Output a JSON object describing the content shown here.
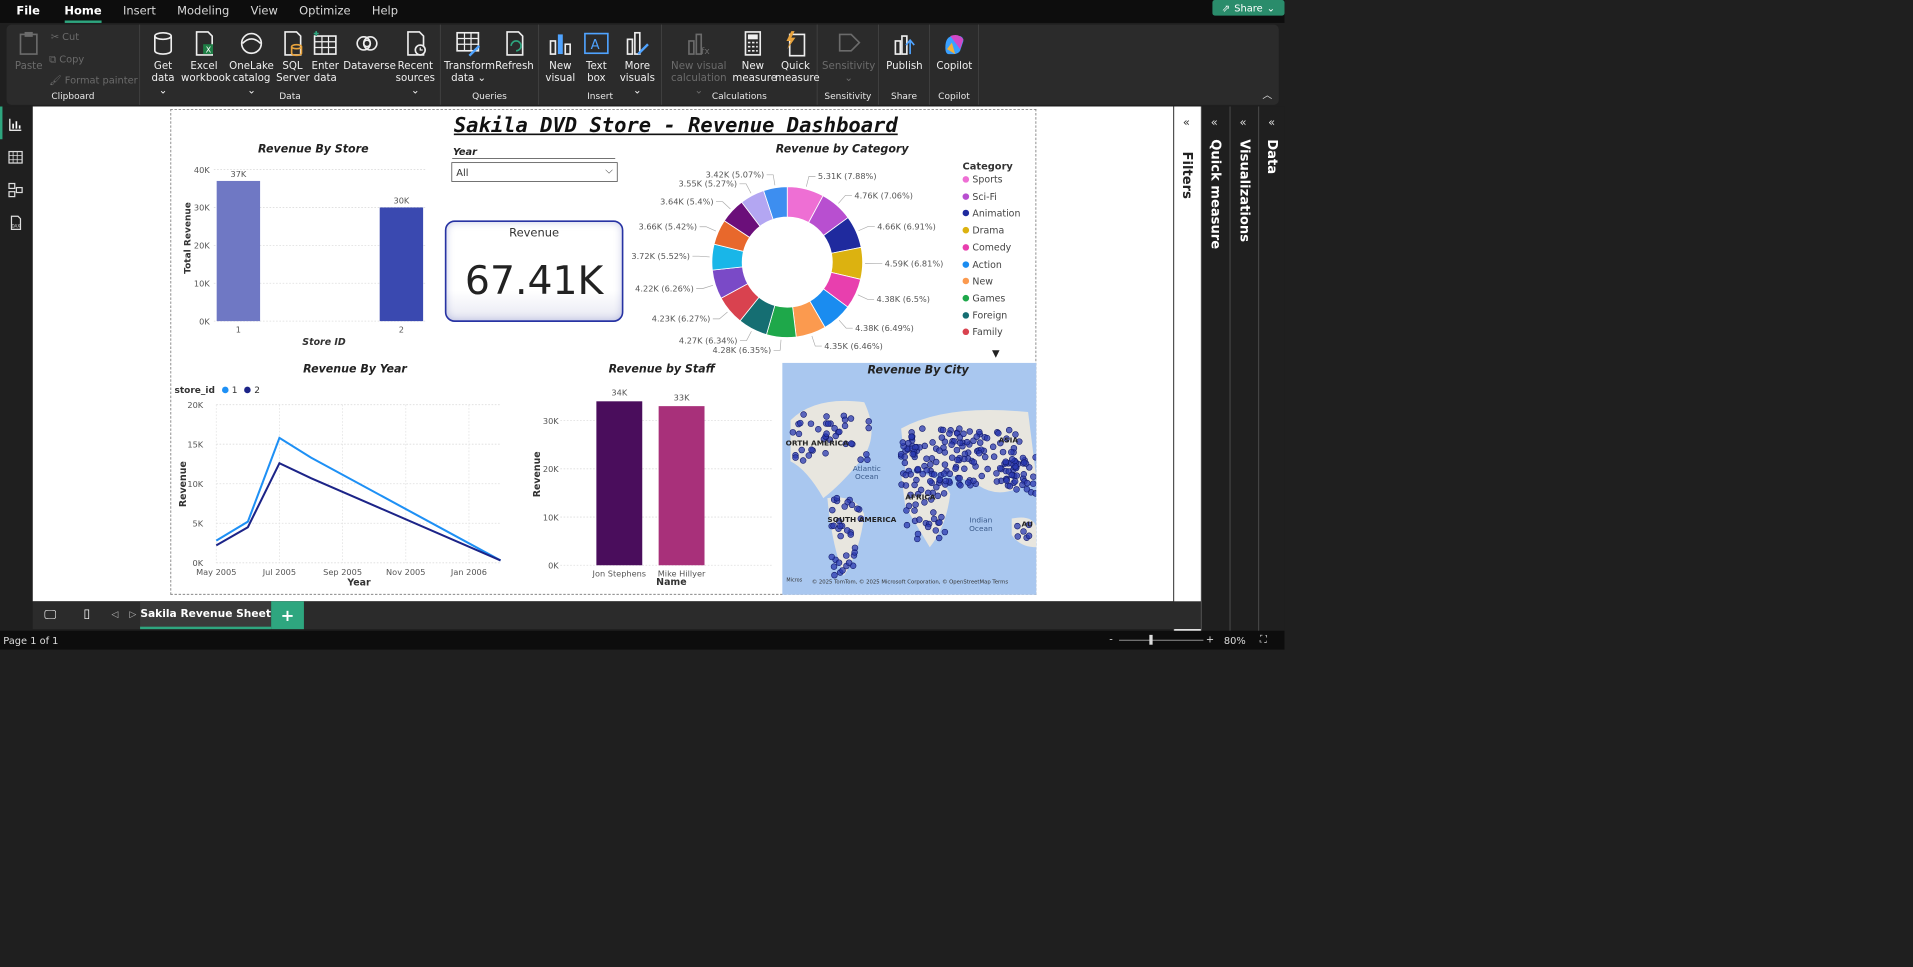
{
  "menu": {
    "file": "File",
    "tabs": [
      "Home",
      "Insert",
      "Modeling",
      "View",
      "Optimize",
      "Help"
    ],
    "share": "Share"
  },
  "ribbon": {
    "clipboard": {
      "paste": "Paste",
      "cut": "Cut",
      "copy": "Copy",
      "format_painter": "Format painter",
      "label": "Clipboard"
    },
    "data": {
      "buttons": [
        {
          "l1": "Get",
          "l2": "data ⌄"
        },
        {
          "l1": "Excel",
          "l2": "workbook"
        },
        {
          "l1": "OneLake",
          "l2": "catalog ⌄"
        },
        {
          "l1": "SQL",
          "l2": "Server"
        },
        {
          "l1": "Enter",
          "l2": "data"
        },
        {
          "l1": "Dataverse",
          "l2": ""
        },
        {
          "l1": "Recent",
          "l2": "sources ⌄"
        }
      ],
      "label": "Data"
    },
    "queries": {
      "transform_l1": "Transform",
      "transform_l2": "data ⌄",
      "refresh": "Refresh",
      "label": "Queries"
    },
    "insert": {
      "new_visual_l1": "New",
      "new_visual_l2": "visual",
      "text_box_l1": "Text",
      "text_box_l2": "box",
      "more_visuals_l1": "More",
      "more_visuals_l2": "visuals ⌄",
      "label": "Insert"
    },
    "calculations": {
      "new_visual_calc_l1": "New visual",
      "new_visual_calc_l2": "calculation ⌄",
      "new_measure_l1": "New",
      "new_measure_l2": "measure",
      "quick_measure_l1": "Quick",
      "quick_measure_l2": "measure",
      "label": "Calculations"
    },
    "sensitivity": {
      "btn": "Sensitivity",
      "btn2": "⌄",
      "label": "Sensitivity"
    },
    "share": {
      "btn": "Publish",
      "label": "Share"
    },
    "copilot": {
      "btn": "Copilot",
      "label": "Copilot"
    }
  },
  "report": {
    "title": "Sakila DVD Store - Revenue Dashboard",
    "slicer": {
      "label": "Year",
      "value": "All"
    },
    "card": {
      "label": "Revenue",
      "value": "67.41K"
    },
    "store_chart": {
      "title": "Revenue By Store",
      "xlabel": "Store ID",
      "ylabel": "Total Revenue"
    },
    "category_chart": {
      "title": "Revenue by Category",
      "legend_title": "Category"
    },
    "year_chart": {
      "title": "Revenue By Year",
      "legend_title": "store_id",
      "xlabel": "Year",
      "ylabel": "Revenue"
    },
    "staff_chart": {
      "title": "Revenue by Staff",
      "xlabel": "Name",
      "ylabel": "Revenue"
    },
    "map": {
      "title": "Revenue By City",
      "labels": {
        "north_america": "ORTH AMERICA",
        "asia": "ASIA",
        "africa": "AFRICA",
        "south_america": "SOUTH AMERICA",
        "atlantic_1": "Atlantic",
        "atlantic_2": "Ocean",
        "indian_1": "Indian",
        "indian_2": "Ocean",
        "au": "AU"
      },
      "attribution": "© 2025 TomTom, © 2025 Microsoft Corporation, © OpenStreetMap  Terms",
      "brand": "Micros"
    }
  },
  "chart_data": [
    {
      "type": "bar",
      "title": "Revenue By Store",
      "categories": [
        "1",
        "2"
      ],
      "values": [
        37000,
        30000
      ],
      "data_labels": [
        "37K",
        "30K"
      ],
      "xlabel": "Store ID",
      "ylabel": "Total Revenue",
      "ylim": [
        0,
        40000
      ],
      "yticks": [
        "0K",
        "10K",
        "20K",
        "30K",
        "40K"
      ],
      "colors": [
        "#6f78c4",
        "#3a49b0"
      ]
    },
    {
      "type": "pie",
      "title": "Revenue by Category",
      "legend": [
        "Sports",
        "Sci-Fi",
        "Animation",
        "Drama",
        "Comedy",
        "Action",
        "New",
        "Games",
        "Foreign",
        "Family"
      ],
      "slices": [
        {
          "label": "5.31K (7.88%)",
          "value": 5.31,
          "color": "#ee6fd4"
        },
        {
          "label": "4.76K (7.06%)",
          "value": 4.76,
          "color": "#b84fd0"
        },
        {
          "label": "4.66K (6.91%)",
          "value": 4.66,
          "color": "#1f2a9e"
        },
        {
          "label": "4.59K (6.81%)",
          "value": 4.59,
          "color": "#dcb210"
        },
        {
          "label": "4.38K (6.5%)",
          "value": 4.38,
          "color": "#e83fae"
        },
        {
          "label": "4.38K (6.49%)",
          "value": 4.38,
          "color": "#1a8cf0"
        },
        {
          "label": "4.35K (6.46%)",
          "value": 4.35,
          "color": "#fb9a4f"
        },
        {
          "label": "4.28K (6.35%)",
          "value": 4.28,
          "color": "#1ea84a"
        },
        {
          "label": "4.27K (6.34%)",
          "value": 4.27,
          "color": "#156e72"
        },
        {
          "label": "4.23K (6.27%)",
          "value": 4.23,
          "color": "#d9424f"
        },
        {
          "label": "4.22K (6.26%)",
          "value": 4.22,
          "color": "#7a4ac7"
        },
        {
          "label": "3.72K (5.52%)",
          "value": 3.72,
          "color": "#19b6e8"
        },
        {
          "label": "3.66K (5.42%)",
          "value": 3.66,
          "color": "#e8682c"
        },
        {
          "label": "3.64K (5.4%)",
          "value": 3.64,
          "color": "#6b0f7a"
        },
        {
          "label": "3.55K (5.27%)",
          "value": 3.55,
          "color": "#b3a6f2"
        },
        {
          "label": "3.42K (5.07%)",
          "value": 3.42,
          "color": "#3d8ef0"
        }
      ],
      "legend_colors": [
        "#ee6fd4",
        "#b84fd0",
        "#1f2a9e",
        "#dcb210",
        "#e83fae",
        "#1a8cf0",
        "#fb9a4f",
        "#1ea84a",
        "#156e72",
        "#d9424f"
      ]
    },
    {
      "type": "line",
      "title": "Revenue By Year",
      "x": [
        "2005-05",
        "2005-06",
        "2005-07",
        "2005-08",
        "2006-02"
      ],
      "series": [
        {
          "name": "1",
          "values": [
            2800,
            5200,
            15800,
            13300,
            300
          ],
          "color": "#1e90f5"
        },
        {
          "name": "2",
          "values": [
            2200,
            4500,
            12600,
            10700,
            300
          ],
          "color": "#1c2488"
        }
      ],
      "xticks": [
        "May 2005",
        "Jul 2005",
        "Sep 2005",
        "Nov 2005",
        "Jan 2006"
      ],
      "yticks": [
        "0K",
        "5K",
        "10K",
        "15K",
        "20K"
      ],
      "ylim": [
        0,
        20000
      ],
      "xlabel": "Year",
      "ylabel": "Revenue"
    },
    {
      "type": "bar",
      "title": "Revenue by Staff",
      "categories": [
        "Jon Stephens",
        "Mike Hillyer"
      ],
      "values": [
        34000,
        33000
      ],
      "data_labels": [
        "34K",
        "33K"
      ],
      "xlabel": "Name",
      "ylabel": "Revenue",
      "ylim": [
        0,
        34000
      ],
      "yticks": [
        "0K",
        "10K",
        "20K",
        "30K"
      ],
      "colors": [
        "#4a0d5c",
        "#a8307a"
      ]
    }
  ],
  "sidebar_panes": {
    "filters": "Filters",
    "quick_measure": "Quick measure",
    "visualizations": "Visualizations",
    "data": "Data"
  },
  "bottom": {
    "sheet": "Sakila Revenue Sheet",
    "add": "+",
    "page": "Page 1 of 1",
    "zoom": "80%"
  }
}
